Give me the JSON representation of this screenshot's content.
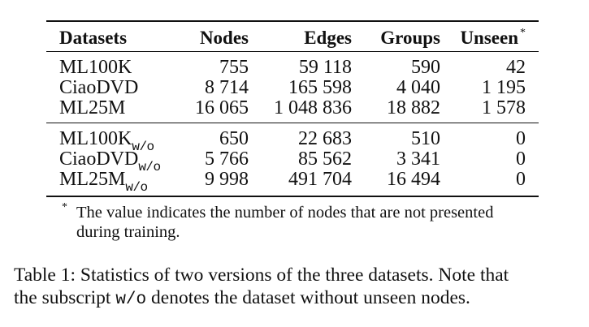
{
  "table": {
    "headers": {
      "datasets": "Datasets",
      "nodes": "Nodes",
      "edges": "Edges",
      "groups": "Groups",
      "unseen": "Unseen",
      "unseen_mark": "*"
    },
    "rows": [
      {
        "dataset": "ML100K",
        "nodes": "755",
        "edges": "59 118",
        "groups": "590",
        "unseen": "42"
      },
      {
        "dataset": "CiaoDVD",
        "nodes": "8 714",
        "edges": "165 598",
        "groups": "4 040",
        "unseen": "1 195"
      },
      {
        "dataset": "ML25M",
        "nodes": "16 065",
        "edges": "1 048 836",
        "groups": "18 882",
        "unseen": "1 578"
      }
    ],
    "rows_wo": [
      {
        "dataset": "ML100K",
        "subscript": "w/o",
        "nodes": "650",
        "edges": "22 683",
        "groups": "510",
        "unseen": "0"
      },
      {
        "dataset": "CiaoDVD",
        "subscript": "w/o",
        "nodes": "5 766",
        "edges": "85 562",
        "groups": "3 341",
        "unseen": "0"
      },
      {
        "dataset": "ML25M",
        "subscript": "w/o",
        "nodes": "9 998",
        "edges": "491 704",
        "groups": "16 494",
        "unseen": "0"
      }
    ]
  },
  "footnote": {
    "mark": "*",
    "line1": "The value indicates the number of nodes that are not presented",
    "line2": "during training."
  },
  "caption": {
    "line1": "Table 1: Statistics of two versions of the three datasets. Note that",
    "line2_prefix": "the subscript ",
    "line2_mono": "w/o",
    "line2_suffix": " denotes the dataset without unseen nodes."
  }
}
